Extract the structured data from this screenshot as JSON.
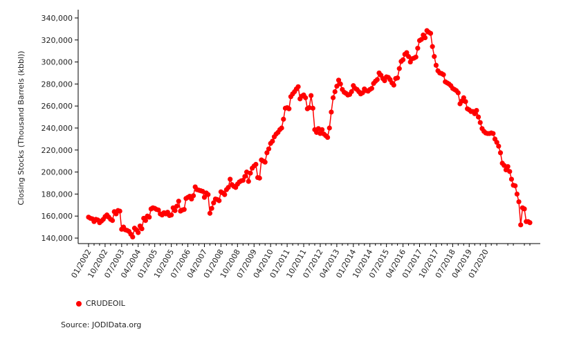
{
  "chart_data": {
    "type": "line",
    "title": "",
    "ylabel": "Closing Stocks (Thousand Barrels (kbbl))",
    "xlabel": "",
    "ylim": [
      135000,
      345000
    ],
    "y_ticks": [
      140000,
      160000,
      180000,
      200000,
      220000,
      240000,
      260000,
      280000,
      300000,
      320000,
      340000
    ],
    "y_tick_labels": [
      "140,000",
      "160,000",
      "180,000",
      "200,000",
      "220,000",
      "240,000",
      "260,000",
      "280,000",
      "300,000",
      "320,000",
      "340,000"
    ],
    "x_tick_labels": [
      "01/2002",
      "10/2002",
      "07/2003",
      "04/2004",
      "01/2005",
      "10/2005",
      "07/2006",
      "04/2007",
      "01/2008",
      "10/2008",
      "07/2009",
      "04/2010",
      "01/2011",
      "10/2011",
      "07/2012",
      "04/2013",
      "01/2014",
      "10/2014",
      "07/2015",
      "04/2016",
      "01/2017",
      "10/2017",
      "07/2018",
      "04/2019",
      "01/2020"
    ],
    "x_start": "01/2002",
    "x_end": "03/2020",
    "legend_position": "bottom-left",
    "grid": false,
    "series": [
      {
        "name": "CRUDEOIL",
        "color": "#ff0000",
        "values": [
          159000,
          158000,
          157500,
          155000,
          157000,
          156500,
          154000,
          155500,
          157000,
          159500,
          161000,
          159000,
          157000,
          156000,
          164000,
          162000,
          165000,
          164500,
          148000,
          150000,
          147500,
          147000,
          146000,
          143500,
          141000,
          149000,
          147500,
          145000,
          151000,
          148500,
          158000,
          156000,
          160000,
          159000,
          166500,
          167500,
          167000,
          166000,
          165500,
          162000,
          161000,
          163000,
          162000,
          163500,
          160500,
          161000,
          167500,
          165000,
          169000,
          173500,
          164500,
          165500,
          166000,
          176000,
          177000,
          178000,
          175500,
          178500,
          186500,
          184000,
          183500,
          183000,
          182500,
          177000,
          181000,
          179500,
          162500,
          167000,
          172000,
          175500,
          175000,
          174000,
          182000,
          181000,
          179500,
          184000,
          186000,
          193500,
          188500,
          187000,
          186000,
          189000,
          191000,
          192000,
          192500,
          196000,
          200000,
          191500,
          199000,
          203500,
          205500,
          207000,
          195000,
          194500,
          211000,
          210000,
          209000,
          217500,
          221000,
          226000,
          228000,
          232000,
          234500,
          236000,
          238500,
          240000,
          248000,
          258000,
          258500,
          257500,
          268500,
          271000,
          273000,
          275500,
          277500,
          266500,
          269000,
          270000,
          267500,
          257500,
          258500,
          269500,
          258000,
          238500,
          236000,
          239500,
          235000,
          238500,
          234500,
          233000,
          231500,
          240000,
          254500,
          267500,
          273000,
          278000,
          283500,
          280000,
          275000,
          272500,
          271500,
          270000,
          270500,
          273000,
          278500,
          276000,
          275000,
          273000,
          271000,
          272000,
          275500,
          274000,
          273500,
          275000,
          276000,
          280500,
          282500,
          284000,
          290000,
          288000,
          285000,
          283000,
          286500,
          286000,
          284000,
          281000,
          279000,
          285000,
          285500,
          294000,
          300500,
          302000,
          307000,
          308500,
          305000,
          300000,
          303000,
          303500,
          304500,
          312500,
          319500,
          320500,
          324500,
          322000,
          328500,
          327000,
          326000,
          314000,
          305000,
          297000,
          292000,
          290000,
          289500,
          288500,
          282000,
          281000,
          280000,
          278500,
          276000,
          275000,
          274000,
          272000,
          262000,
          264500,
          267500,
          264000,
          257500,
          256500,
          255000,
          255000,
          253000,
          256000,
          250000,
          245000,
          239500,
          237000,
          235500,
          235000,
          235000,
          235500,
          235000,
          230000,
          227000,
          223500,
          217500,
          208000,
          206000,
          202000,
          205000,
          200500,
          193500,
          188000,
          187500,
          180000,
          173000,
          152000,
          167500,
          166500,
          155000,
          155000,
          154000
        ]
      }
    ]
  },
  "legend": {
    "label": "CRUDEOIL"
  },
  "source": "Source: JODIData.org"
}
